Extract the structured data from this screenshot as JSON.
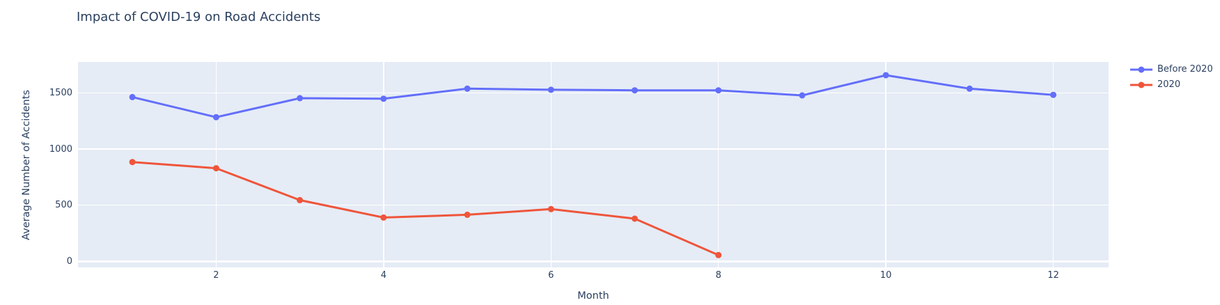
{
  "title": "Impact of COVID-19 on Road Accidents",
  "colors": {
    "text": "#2a3f5f",
    "paper_bg": "#ffffff",
    "plot_bg": "#E5ECF6",
    "grid": "#ffffff",
    "series_before_2020": "#636EFA",
    "series_2020": "#EF553B"
  },
  "legend": {
    "items": [
      {
        "label": "Before 2020",
        "color": "#636EFA"
      },
      {
        "label": "2020",
        "color": "#EF553B"
      }
    ]
  },
  "chart_data": {
    "type": "line",
    "title": "Impact of COVID-19 on Road Accidents",
    "xlabel": "Month",
    "ylabel": "Average Number of Accidents",
    "x": [
      1,
      2,
      3,
      4,
      5,
      6,
      7,
      8,
      9,
      10,
      11,
      12
    ],
    "series": [
      {
        "name": "Before 2020",
        "color": "#636EFA",
        "x": [
          1,
          2,
          3,
          4,
          5,
          6,
          7,
          8,
          9,
          10,
          11,
          12
        ],
        "values": [
          1465,
          1285,
          1455,
          1450,
          1540,
          1530,
          1525,
          1525,
          1480,
          1660,
          1540,
          1485
        ]
      },
      {
        "name": "2020",
        "color": "#EF553B",
        "x": [
          1,
          2,
          3,
          4,
          5,
          6,
          7,
          8
        ],
        "values": [
          885,
          830,
          545,
          390,
          415,
          465,
          380,
          55
        ]
      }
    ],
    "xticks": [
      2,
      4,
      6,
      8,
      10,
      12
    ],
    "yticks": [
      0,
      500,
      1000,
      1500
    ],
    "xlim": [
      0.35,
      12.66
    ],
    "ylim": [
      -55,
      1778
    ],
    "grid": true,
    "zeroline": true,
    "legend_position": "top-right-outside",
    "marker": "circle",
    "line_width": 3,
    "marker_radius": 4.5
  }
}
